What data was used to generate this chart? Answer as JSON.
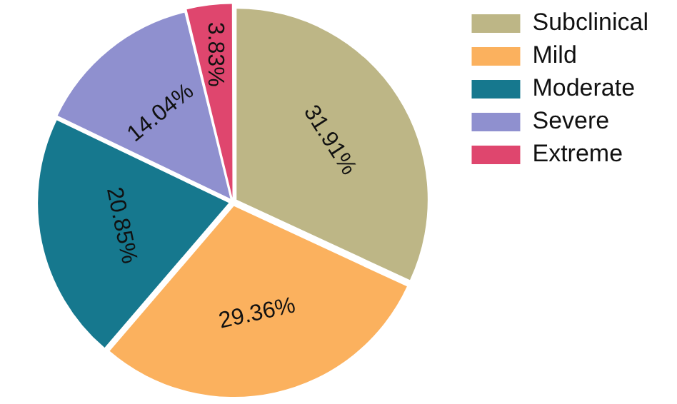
{
  "chart_data": {
    "type": "pie",
    "categories": [
      "Subclinical",
      "Mild",
      "Moderate",
      "Severe",
      "Extreme"
    ],
    "values": [
      31.91,
      29.36,
      20.85,
      14.04,
      3.83
    ],
    "colors": [
      "#bdb686",
      "#fbb15e",
      "#16788e",
      "#8f90cf",
      "#df466e"
    ],
    "value_labels": [
      "31.91%",
      "29.36%",
      "20.85%",
      "14.04%",
      "3.83%"
    ],
    "legend": "top right"
  }
}
